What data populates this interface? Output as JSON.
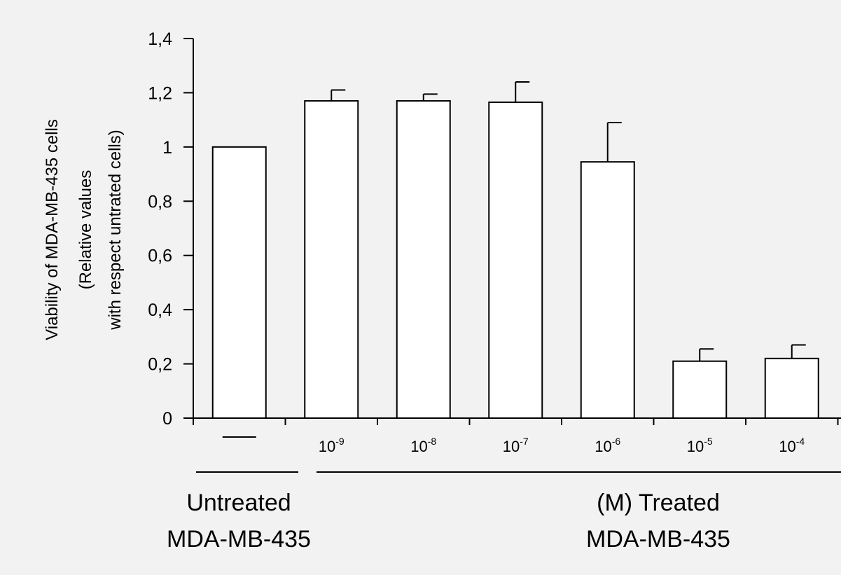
{
  "chart_data": {
    "type": "bar",
    "categories": [
      {
        "base": "—",
        "exp": ""
      },
      {
        "base": "10",
        "exp": "-9"
      },
      {
        "base": "10",
        "exp": "-8"
      },
      {
        "base": "10",
        "exp": "-7"
      },
      {
        "base": "10",
        "exp": "-6"
      },
      {
        "base": "10",
        "exp": "-5"
      },
      {
        "base": "10",
        "exp": "-4"
      }
    ],
    "values": [
      1.0,
      1.17,
      1.17,
      1.165,
      0.945,
      0.21,
      0.22
    ],
    "error_upper": [
      0,
      0.04,
      0.025,
      0.075,
      0.145,
      0.045,
      0.05
    ],
    "ylabel_lines": [
      "Viability of MDA-MB-435 cells",
      "(Relative values",
      "with respect untrated cells)"
    ],
    "ylim": [
      0,
      1.4
    ],
    "yticks": [
      0,
      0.2,
      0.4,
      0.6,
      0.8,
      1.0,
      1.2,
      1.4
    ],
    "ytick_labels": [
      "0",
      "0,2",
      "0,4",
      "0,6",
      "0,8",
      "1",
      "1,2",
      "1,4"
    ],
    "grid": false,
    "groups": [
      {
        "lines": [
          "Untreated",
          "MDA-MB-435"
        ],
        "first": 0,
        "last": 0
      },
      {
        "lines": [
          "(M) Treated",
          "MDA-MB-435"
        ],
        "first": 1,
        "last": 6
      }
    ],
    "colors": {
      "background": "#f2f2f2",
      "bar_fill": "#ffffff",
      "stroke": "#000000"
    }
  }
}
